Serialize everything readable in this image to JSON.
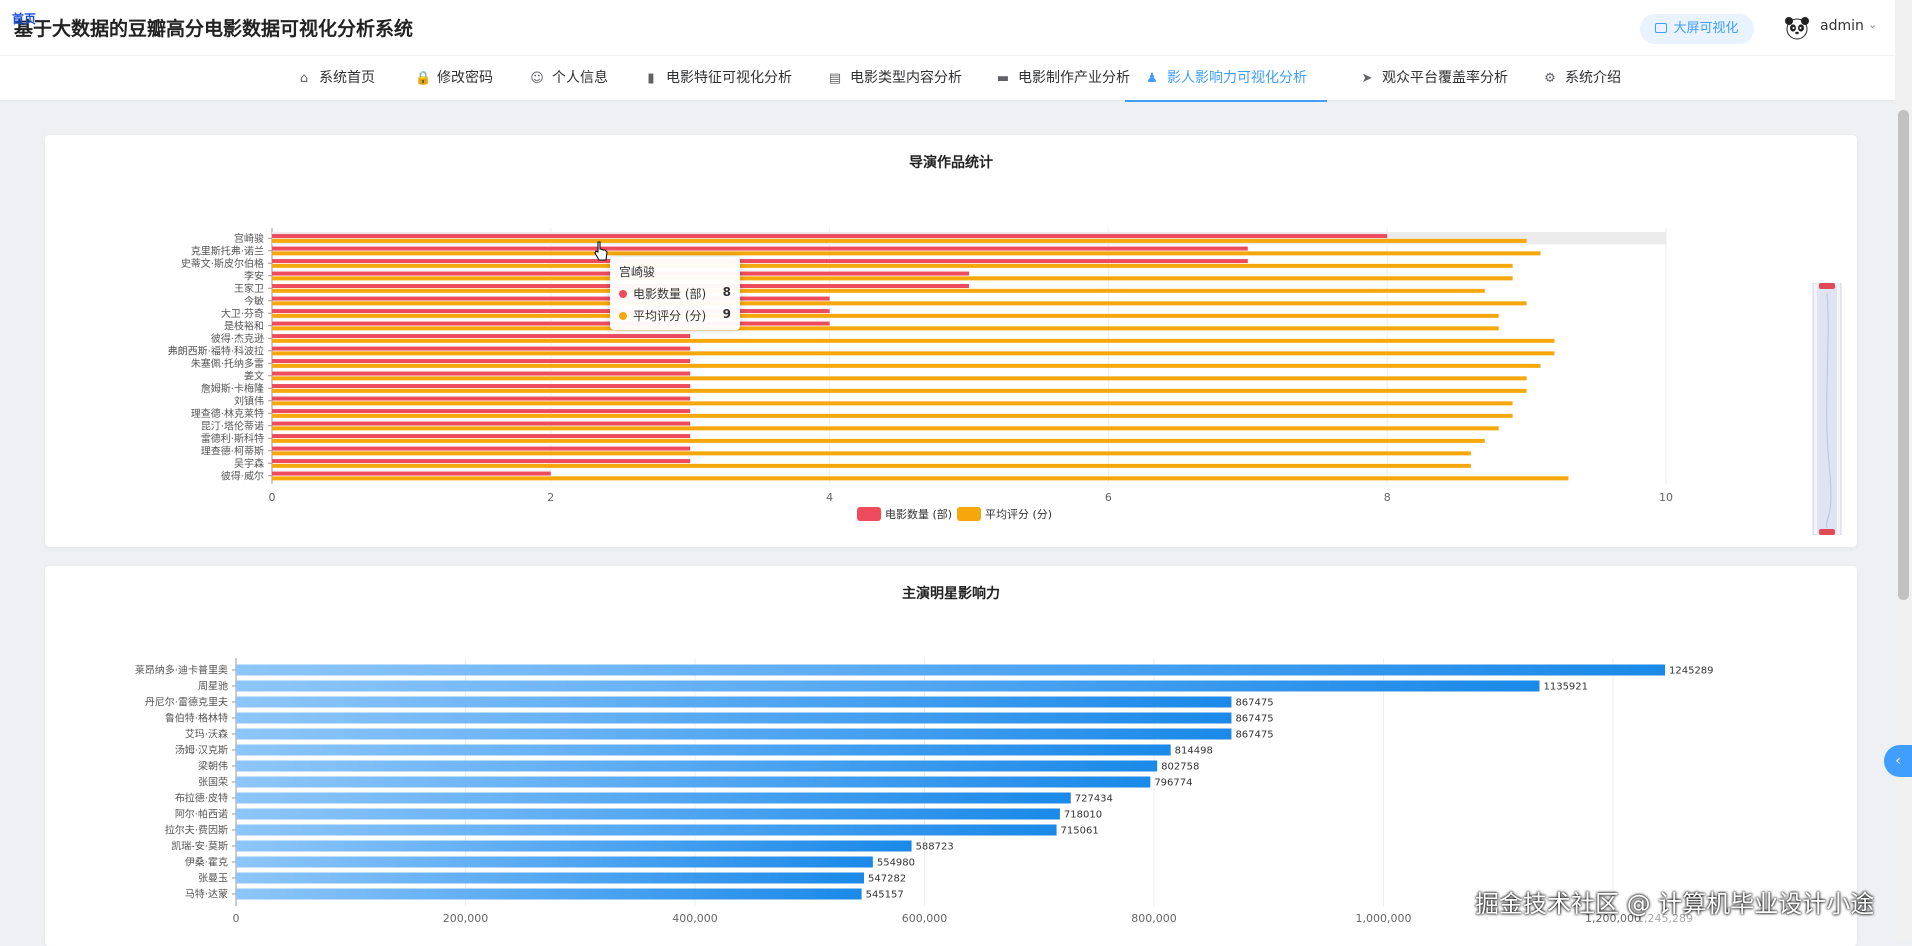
{
  "header": {
    "badge": "首页",
    "title": "基于大数据的豆瓣高分电影数据可视化分析系统",
    "bigscreen_label": "大屏可视化",
    "username": "admin"
  },
  "nav": [
    {
      "label": "系统首页",
      "icon": "home-icon"
    },
    {
      "label": "修改密码",
      "icon": "lock-icon"
    },
    {
      "label": "个人信息",
      "icon": "user-icon"
    },
    {
      "label": "电影特征可视化分析",
      "icon": "bar-chart-icon"
    },
    {
      "label": "电影类型内容分析",
      "icon": "line-chart-icon"
    },
    {
      "label": "电影制作产业分析",
      "icon": "monitor-icon"
    },
    {
      "label": "影人影响力可视化分析",
      "icon": "person-icon",
      "active": true
    },
    {
      "label": "观众平台覆盖率分析",
      "icon": "send-icon"
    },
    {
      "label": "系统介绍",
      "icon": "gear-icon"
    }
  ],
  "tooltip": {
    "title": "宫崎骏",
    "rows": [
      {
        "label": "电影数量 (部)",
        "value": "8"
      },
      {
        "label": "平均评分 (分)",
        "value": "9"
      }
    ]
  },
  "side_tab": "‹",
  "watermark": "掘金技术社区 @ 计算机毕业设计小途",
  "chart_data": [
    {
      "type": "bar",
      "orientation": "horizontal",
      "title": "导演作品统计",
      "categories": [
        "宫崎骏",
        "克里斯托弗·诺兰",
        "史蒂文·斯皮尔伯格",
        "李安",
        "王家卫",
        "今敏",
        "大卫·芬奇",
        "是枝裕和",
        "彼得·杰克逊",
        "弗朗西斯·福特·科波拉",
        "朱塞佩·托纳多雷",
        "姜文",
        "詹姆斯·卡梅隆",
        "刘镇伟",
        "理查德·林克莱特",
        "昆汀·塔伦蒂诺",
        "雷德利·斯科特",
        "理查德·柯蒂斯",
        "吴宇森",
        "彼得·威尔"
      ],
      "series": [
        {
          "name": "电影数量 (部)",
          "color": "#ee4c5c",
          "values": [
            8,
            7,
            7,
            5,
            5,
            4,
            4,
            4,
            3,
            3,
            3,
            3,
            3,
            3,
            3,
            3,
            3,
            3,
            3,
            2
          ]
        },
        {
          "name": "平均评分 (分)",
          "color": "#f5a70b",
          "values": [
            9.0,
            9.1,
            8.9,
            8.9,
            8.7,
            9.0,
            8.8,
            8.8,
            9.2,
            9.2,
            9.1,
            9.0,
            9.0,
            8.9,
            8.9,
            8.8,
            8.7,
            8.6,
            8.6,
            9.3
          ]
        }
      ],
      "xlim": [
        0,
        10
      ],
      "xticks": [
        "0",
        "2",
        "4",
        "6",
        "8",
        "10"
      ],
      "legend": "bottom-center",
      "highlight": "宫崎骏",
      "grid": true
    },
    {
      "type": "bar",
      "orientation": "horizontal",
      "title": "主演明星影响力",
      "categories": [
        "莱昂纳多·迪卡普里奥",
        "周星驰",
        "丹尼尔·雷德克里夫",
        "鲁伯特·格林特",
        "艾玛·沃森",
        "汤姆·汉克斯",
        "梁朝伟",
        "张国荣",
        "布拉德·皮特",
        "阿尔·帕西诺",
        "拉尔夫·费因斯",
        "凯瑞-安·莫斯",
        "伊桑·霍克",
        "张曼玉",
        "马特·达蒙"
      ],
      "values": [
        1245289,
        1135921,
        867475,
        867475,
        867475,
        814498,
        802758,
        796774,
        727434,
        718010,
        715061,
        588723,
        554980,
        547282,
        545157
      ],
      "value_labels": [
        "1245289",
        "1135921",
        "867475",
        "867475",
        "867475",
        "814498",
        "802758",
        "796774",
        "727434",
        "718010",
        "715061",
        "588723",
        "554980",
        "547282",
        "545157"
      ],
      "xlim": [
        0,
        1245289
      ],
      "xticks": [
        "0",
        "200,000",
        "400,000",
        "600,000",
        "800,000",
        "1,000,000",
        "1,200,000",
        "1,245,289"
      ],
      "color_start": "#8ec6fb",
      "color_end": "#1a89e8",
      "grid": true
    }
  ]
}
